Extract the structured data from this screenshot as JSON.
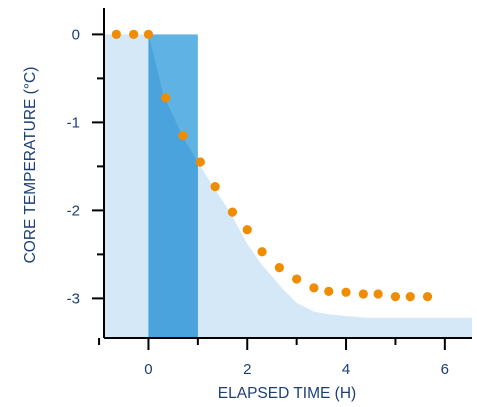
{
  "chart_data": {
    "type": "scatter",
    "xlabel": "ELAPSED TIME (H)",
    "ylabel": "CORE TEMPERATURE (°C)",
    "xlim": [
      -0.9,
      6.55
    ],
    "ylim": [
      -3.45,
      0.3
    ],
    "x_ticks": [
      0,
      2,
      4,
      6
    ],
    "x_minor_ticks": [
      -1,
      1,
      3,
      5
    ],
    "y_ticks": [
      0,
      -1,
      -2,
      -3
    ],
    "y_minor_ticks": [
      -0.5,
      -1.5,
      -2.5,
      -3.5
    ],
    "x_tick_labels": [
      "0",
      "2",
      "4",
      "6"
    ],
    "y_tick_labels": [
      "0",
      "-1",
      "-2",
      "-3"
    ],
    "grid": false,
    "colors": {
      "axis": "#000000",
      "text": "#1b3f78",
      "area_fill": "#d4e8f7",
      "band_fill": "#5fb3e4",
      "band_overlap": "#4aa3dc",
      "points": "#f08c00"
    },
    "shaded_area": {
      "x": [
        -0.9,
        0,
        0.3,
        0.7,
        1.0,
        1.3,
        1.65,
        2.0,
        2.3,
        2.7,
        3.0,
        3.35,
        3.65,
        4.0,
        4.4,
        6.55
      ],
      "y": [
        0,
        0,
        -0.68,
        -1.17,
        -1.45,
        -1.72,
        -2.02,
        -2.38,
        -2.62,
        -2.88,
        -3.05,
        -3.15,
        -3.18,
        -3.2,
        -3.22,
        -3.22
      ]
    },
    "highlight_band": {
      "x_start": 0,
      "x_end": 1.0,
      "y_top": 0
    },
    "series": [
      {
        "x": [
          -0.65,
          -0.3,
          0.0,
          0.35,
          0.7,
          1.05,
          1.35,
          1.7,
          2.0,
          2.3,
          2.65,
          3.0,
          3.35,
          3.65,
          4.0,
          4.35,
          4.65,
          5.0,
          5.3,
          5.65
        ],
        "y": [
          0.0,
          0.0,
          0.0,
          -0.72,
          -1.15,
          -1.45,
          -1.73,
          -2.02,
          -2.22,
          -2.47,
          -2.65,
          -2.78,
          -2.88,
          -2.92,
          -2.93,
          -2.95,
          -2.95,
          -2.98,
          -2.98,
          -2.98
        ]
      }
    ]
  }
}
